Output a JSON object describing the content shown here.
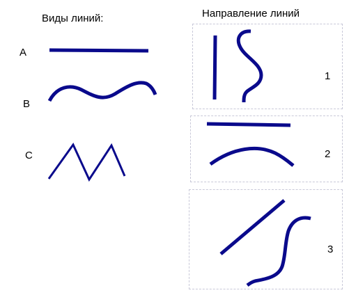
{
  "left_title": "Виды линий:",
  "right_title": "Направление линий",
  "line_types": [
    {
      "label": "A",
      "kind": "straight"
    },
    {
      "label": "B",
      "kind": "wavy"
    },
    {
      "label": "C",
      "kind": "zigzag"
    }
  ],
  "directions": [
    {
      "label": "1",
      "kind": "vertical"
    },
    {
      "label": "2",
      "kind": "horizontal"
    },
    {
      "label": "3",
      "kind": "diagonal"
    }
  ],
  "colors": {
    "line": "#0a0a8c",
    "box_border": "#c8c8d8"
  }
}
